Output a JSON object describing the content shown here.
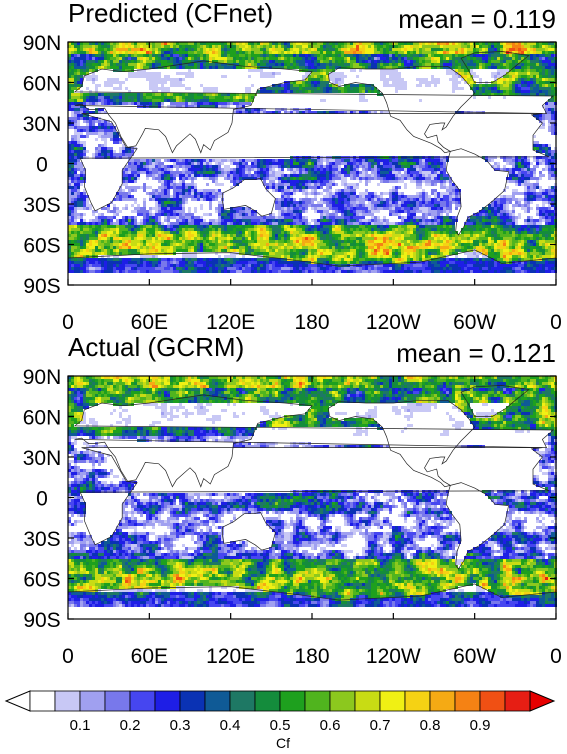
{
  "panels": [
    {
      "id": "predicted",
      "title": "Predicted (CFnet)",
      "mean_label": "mean = 0.119"
    },
    {
      "id": "actual",
      "title": "Actual (GCRM)",
      "mean_label": "mean = 0.121"
    }
  ],
  "lat_ticks": [
    "90N",
    "60N",
    "30N",
    "0",
    "30S",
    "60S",
    "90S"
  ],
  "lon_ticks": [
    "0",
    "60E",
    "120E",
    "180",
    "120W",
    "60W",
    "0"
  ],
  "colorbar": {
    "tick_labels": [
      "0.1",
      "0.2",
      "0.3",
      "0.4",
      "0.5",
      "0.6",
      "0.7",
      "0.8",
      "0.9"
    ],
    "unit_label": "Cf",
    "colors": [
      "#ffffff",
      "#c8c8f5",
      "#a0a0f0",
      "#7878eb",
      "#4646f0",
      "#1e1ee6",
      "#0a32b4",
      "#0f5a96",
      "#1e7864",
      "#148c3c",
      "#1ea01e",
      "#50b41e",
      "#8cc81e",
      "#c8dc14",
      "#f0f014",
      "#f5d214",
      "#f5aa14",
      "#f58214",
      "#f05014",
      "#e61e14"
    ]
  },
  "chart_data": {
    "type": "heatmap",
    "panels": [
      "Predicted (CFnet)",
      "Actual (GCRM)"
    ],
    "means": [
      0.119,
      0.121
    ],
    "x_range": [
      0,
      360
    ],
    "y_range": [
      -90,
      90
    ],
    "colorbar_range": [
      0,
      1
    ],
    "colorbar_label": "Cf"
  }
}
